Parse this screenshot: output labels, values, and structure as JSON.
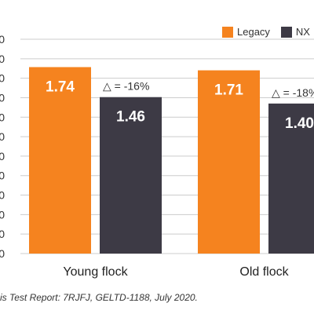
{
  "chart_data": {
    "type": "bar",
    "categories": [
      "Young flock",
      "Old flock"
    ],
    "series": [
      {
        "name": "Legacy",
        "values": [
          1.74,
          1.71
        ],
        "color": "#f5831f"
      },
      {
        "name": "NX",
        "values": [
          1.46,
          1.4
        ],
        "color": "#3d3a45"
      }
    ],
    "value_labels": [
      [
        "1.74",
        "1.71"
      ],
      [
        "1.46",
        "1.40"
      ]
    ],
    "annotations": [
      "△ = -16%",
      "△ = -18%"
    ],
    "ylim": [
      0,
      2.0
    ],
    "y_ticks": [
      "0",
      "0",
      "0",
      "0",
      "0",
      "0",
      "0",
      "0",
      "0",
      "0",
      "0",
      "0"
    ],
    "legend_position": "top-right",
    "grid": true,
    "grid_color": "#cccccc",
    "source": "is Test Report: 7RJFJ, GELTD-1188, July 2020."
  }
}
